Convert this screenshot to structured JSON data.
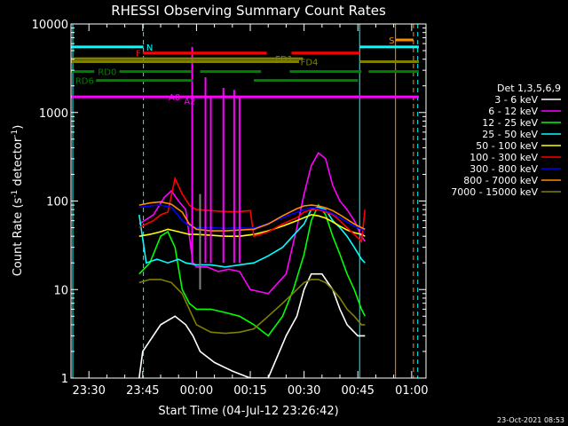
{
  "chart_data": {
    "type": "line",
    "title": "RHESSI Observing Summary Count Rates",
    "xlabel": "Start Time (04-Jul-12 23:26:42)",
    "ylabel": "Count Rate (s⁻¹ detector⁻¹)",
    "ylabel_main": "Count Rate (s",
    "ylabel_sup1": "-1",
    "ylabel_mid": " detector",
    "ylabel_sup2": "-1",
    "ylabel_end": ")",
    "y_scale": "log",
    "ylim": [
      1,
      10000
    ],
    "xlim_minutes": [
      -35,
      6
    ],
    "x_unit": "minutes after 00:00 (05-Jul-12)",
    "x_ticks": [
      {
        "t": -30,
        "label": "23:30"
      },
      {
        "t": -15,
        "label": "23:45"
      },
      {
        "t": 0,
        "label": "00:00"
      },
      {
        "t": 15,
        "label": "00:15"
      },
      {
        "t": 30,
        "label": "00:30"
      },
      {
        "t": 45,
        "label": "00:45"
      },
      {
        "t": 60,
        "label": "01:00"
      }
    ],
    "y_ticks": [
      {
        "v": 1,
        "label": "1"
      },
      {
        "v": 10,
        "label": "10"
      },
      {
        "v": 100,
        "label": "100"
      },
      {
        "v": 1000,
        "label": "1000"
      },
      {
        "v": 10000,
        "label": "10000"
      }
    ],
    "legend_title": "Det 1,3,5,6,9",
    "legend_placement": "right",
    "series": [
      {
        "name": "3 - 6 keV",
        "color": "#ffffff",
        "points": [
          [
            -16,
            1
          ],
          [
            -15,
            2
          ],
          [
            -10,
            4
          ],
          [
            -6,
            5
          ],
          [
            -3,
            4
          ],
          [
            -1,
            3
          ],
          [
            1,
            2
          ],
          [
            5,
            1.5
          ],
          [
            10,
            1.2
          ],
          [
            15,
            1
          ],
          [
            20,
            1
          ],
          [
            25,
            3
          ],
          [
            28,
            5
          ],
          [
            30,
            10
          ],
          [
            32,
            15
          ],
          [
            35,
            15
          ],
          [
            38,
            10
          ],
          [
            40,
            6
          ],
          [
            42,
            4
          ],
          [
            45,
            3
          ],
          [
            47,
            3
          ]
        ]
      },
      {
        "name": "6 - 12 keV",
        "color": "#ff00ff",
        "points": [
          [
            -16,
            55
          ],
          [
            -12,
            70
          ],
          [
            -9,
            110
          ],
          [
            -7,
            130
          ],
          [
            -5,
            100
          ],
          [
            -3,
            80
          ],
          [
            -1,
            20
          ],
          [
            0,
            18
          ],
          [
            3,
            18
          ],
          [
            6,
            16
          ],
          [
            9,
            17
          ],
          [
            12,
            16
          ],
          [
            15,
            10
          ],
          [
            20,
            9
          ],
          [
            25,
            15
          ],
          [
            28,
            50
          ],
          [
            30,
            120
          ],
          [
            32,
            250
          ],
          [
            34,
            350
          ],
          [
            36,
            300
          ],
          [
            38,
            150
          ],
          [
            40,
            100
          ],
          [
            42,
            80
          ],
          [
            44,
            60
          ],
          [
            46,
            40
          ],
          [
            47,
            35
          ]
        ]
      },
      {
        "name": "12 - 25 keV",
        "color": "#00ff00",
        "points": [
          [
            -16,
            15
          ],
          [
            -13,
            20
          ],
          [
            -10,
            40
          ],
          [
            -8,
            45
          ],
          [
            -6,
            30
          ],
          [
            -4,
            10
          ],
          [
            -2,
            7
          ],
          [
            0,
            6
          ],
          [
            4,
            6
          ],
          [
            8,
            5.5
          ],
          [
            12,
            5
          ],
          [
            16,
            4
          ],
          [
            20,
            3
          ],
          [
            24,
            5
          ],
          [
            27,
            10
          ],
          [
            30,
            25
          ],
          [
            32,
            60
          ],
          [
            34,
            90
          ],
          [
            36,
            70
          ],
          [
            38,
            40
          ],
          [
            40,
            25
          ],
          [
            42,
            15
          ],
          [
            44,
            10
          ],
          [
            46,
            6
          ],
          [
            47,
            5
          ]
        ]
      },
      {
        "name": "25 - 50 keV",
        "color": "#00ffff",
        "points": [
          [
            -16,
            70
          ],
          [
            -14,
            20
          ],
          [
            -11,
            22
          ],
          [
            -8,
            20
          ],
          [
            -5,
            22
          ],
          [
            -3,
            20
          ],
          [
            0,
            19
          ],
          [
            4,
            19
          ],
          [
            8,
            18
          ],
          [
            12,
            19
          ],
          [
            16,
            20
          ],
          [
            20,
            24
          ],
          [
            24,
            30
          ],
          [
            28,
            45
          ],
          [
            30,
            55
          ],
          [
            32,
            80
          ],
          [
            34,
            85
          ],
          [
            36,
            80
          ],
          [
            38,
            60
          ],
          [
            40,
            50
          ],
          [
            42,
            40
          ],
          [
            44,
            30
          ],
          [
            46,
            22
          ],
          [
            47,
            20
          ]
        ]
      },
      {
        "name": "50 - 100 keV",
        "color": "#ffff00",
        "points": [
          [
            -16,
            40
          ],
          [
            -13,
            42
          ],
          [
            -10,
            45
          ],
          [
            -8,
            48
          ],
          [
            -6,
            46
          ],
          [
            -4,
            44
          ],
          [
            -2,
            42
          ],
          [
            0,
            42
          ],
          [
            4,
            41
          ],
          [
            8,
            40
          ],
          [
            12,
            40
          ],
          [
            16,
            42
          ],
          [
            20,
            46
          ],
          [
            24,
            52
          ],
          [
            28,
            60
          ],
          [
            30,
            65
          ],
          [
            32,
            70
          ],
          [
            34,
            68
          ],
          [
            36,
            64
          ],
          [
            38,
            58
          ],
          [
            40,
            52
          ],
          [
            42,
            47
          ],
          [
            44,
            44
          ],
          [
            46,
            42
          ],
          [
            47,
            40
          ]
        ]
      },
      {
        "name": "100 - 300 keV",
        "color": "#ff0000",
        "points": [
          [
            -16,
            50
          ],
          [
            -14,
            55
          ],
          [
            -12,
            60
          ],
          [
            -10,
            70
          ],
          [
            -8,
            75
          ],
          [
            -6,
            180
          ],
          [
            -4,
            120
          ],
          [
            -2,
            90
          ],
          [
            0,
            80
          ],
          [
            4,
            78
          ],
          [
            8,
            76
          ],
          [
            12,
            76
          ],
          [
            15,
            78
          ],
          [
            16,
            40
          ],
          [
            20,
            45
          ],
          [
            24,
            55
          ],
          [
            28,
            65
          ],
          [
            30,
            75
          ],
          [
            32,
            80
          ],
          [
            34,
            80
          ],
          [
            36,
            75
          ],
          [
            38,
            70
          ],
          [
            40,
            60
          ],
          [
            42,
            50
          ],
          [
            44,
            42
          ],
          [
            46,
            35
          ],
          [
            47,
            80
          ]
        ]
      },
      {
        "name": "300 - 800 keV",
        "color": "#0000ff",
        "points": [
          [
            -16,
            85
          ],
          [
            -13,
            88
          ],
          [
            -10,
            90
          ],
          [
            -7,
            85
          ],
          [
            -4,
            60
          ],
          [
            -2,
            52
          ],
          [
            0,
            50
          ],
          [
            4,
            50
          ],
          [
            8,
            49
          ],
          [
            12,
            50
          ],
          [
            15,
            49
          ],
          [
            18,
            52
          ],
          [
            22,
            60
          ],
          [
            26,
            70
          ],
          [
            30,
            80
          ],
          [
            32,
            84
          ],
          [
            34,
            82
          ],
          [
            36,
            78
          ],
          [
            38,
            72
          ],
          [
            40,
            65
          ],
          [
            42,
            58
          ],
          [
            44,
            52
          ],
          [
            46,
            48
          ],
          [
            47,
            46
          ]
        ]
      },
      {
        "name": "800 - 7000 keV",
        "color": "#ff8c00",
        "points": [
          [
            -16,
            90
          ],
          [
            -13,
            95
          ],
          [
            -10,
            98
          ],
          [
            -7,
            92
          ],
          [
            -4,
            75
          ],
          [
            -2,
            55
          ],
          [
            0,
            48
          ],
          [
            4,
            46
          ],
          [
            8,
            46
          ],
          [
            12,
            47
          ],
          [
            16,
            48
          ],
          [
            20,
            55
          ],
          [
            24,
            68
          ],
          [
            28,
            82
          ],
          [
            30,
            88
          ],
          [
            32,
            90
          ],
          [
            34,
            88
          ],
          [
            36,
            84
          ],
          [
            38,
            78
          ],
          [
            40,
            70
          ],
          [
            42,
            62
          ],
          [
            44,
            55
          ],
          [
            46,
            50
          ],
          [
            47,
            48
          ]
        ]
      },
      {
        "name": "7000 - 15000 keV",
        "color": "#808000",
        "points": [
          [
            -16,
            12
          ],
          [
            -13,
            13
          ],
          [
            -10,
            13
          ],
          [
            -7,
            12
          ],
          [
            -4,
            9
          ],
          [
            -2,
            6
          ],
          [
            0,
            4
          ],
          [
            4,
            3.3
          ],
          [
            8,
            3.2
          ],
          [
            12,
            3.3
          ],
          [
            16,
            3.6
          ],
          [
            20,
            5
          ],
          [
            24,
            7
          ],
          [
            28,
            10
          ],
          [
            30,
            12
          ],
          [
            32,
            13
          ],
          [
            34,
            13
          ],
          [
            36,
            12
          ],
          [
            38,
            10
          ],
          [
            40,
            8
          ],
          [
            42,
            6
          ],
          [
            44,
            5
          ],
          [
            46,
            4
          ],
          [
            47,
            4
          ]
        ]
      }
    ],
    "bars": [
      {
        "label": "N",
        "color": "#00ffff",
        "y": 5500,
        "segments": [
          [
            -35,
            -14.8
          ],
          [
            45.5,
            62
          ]
        ],
        "label_at": -14.0,
        "label_side": "right"
      },
      {
        "label": "F",
        "color": "#ff0000",
        "y": 4700,
        "segments": [
          [
            -15,
            19.6
          ],
          [
            26.5,
            45.5
          ]
        ],
        "label_at": -15.5,
        "label_side": "left"
      },
      {
        "label": "S",
        "color": "#ff8c00",
        "y": 6600,
        "segments": [
          [
            55.5,
            60.5
          ]
        ],
        "label_at": 55.2,
        "label_side": "left"
      },
      {
        "label": "FD1",
        "color": "#808000",
        "y": 4050,
        "segments": [
          [
            -35,
            29.7
          ]
        ],
        "label_at": 22.0,
        "label_side": "right"
      },
      {
        "label": "FD4",
        "color": "#808000",
        "y": 3750,
        "segments": [
          [
            -35,
            28.6
          ],
          [
            45.5,
            62
          ]
        ],
        "label_at": 29.0,
        "label_side": "right"
      },
      {
        "label": "RD0",
        "color": "#008000",
        "y": 2900,
        "segments": [
          [
            -35,
            -28.5
          ],
          [
            -21.5,
            -1.5
          ],
          [
            1,
            18
          ],
          [
            26,
            46
          ],
          [
            48,
            62
          ]
        ],
        "label_at": -27.5,
        "label_side": "right"
      },
      {
        "label": "RD6",
        "color": "#008000",
        "y": 2300,
        "segments": [
          [
            -28,
            -1
          ],
          [
            16,
            45
          ]
        ],
        "label_at": -28.6,
        "label_side": "left"
      },
      {
        "label": "A0",
        "color": "#ff00ff",
        "y": 1500,
        "segments": [
          [
            -35,
            62
          ]
        ],
        "label_at": -4.5,
        "label_side": "left"
      },
      {
        "label": "A2",
        "color": "#ff00ff",
        "y": 1350,
        "segments": [],
        "label_at": -3.5,
        "label_side": "right"
      }
    ],
    "spikes": [
      {
        "color": "#ff00ff",
        "t": -1.2,
        "peak": 5500,
        "base": 20
      },
      {
        "color": "#ff00ff",
        "t": 2.5,
        "peak": 2500,
        "base": 20
      },
      {
        "color": "#ff00ff",
        "t": 7.5,
        "peak": 1900,
        "base": 20
      },
      {
        "color": "#ff00ff",
        "t": 10.5,
        "peak": 1800,
        "base": 20
      },
      {
        "color": "#ff00ff",
        "t": 4.0,
        "peak": 1500,
        "base": 20
      },
      {
        "color": "#ff00ff",
        "t": 12.0,
        "peak": 1500,
        "base": 20
      },
      {
        "color": "#808080",
        "t": 1.0,
        "peak": 120,
        "base": 10
      }
    ],
    "vlines": [
      {
        "t": -34.5,
        "color": "#00ffff",
        "style": "solid"
      },
      {
        "t": -14.8,
        "color": "#00ffff",
        "style": "dashed"
      },
      {
        "t": 45.5,
        "color": "#00ffff",
        "style": "solid"
      },
      {
        "t": 61.7,
        "color": "#00ffff",
        "style": "dashed"
      },
      {
        "t": 55.5,
        "color": "#ff8c00",
        "style": "solid"
      },
      {
        "t": 60.5,
        "color": "#ff8c00",
        "style": "dashed"
      }
    ]
  },
  "footer": {
    "date": "23-Oct-2021 08:53"
  }
}
